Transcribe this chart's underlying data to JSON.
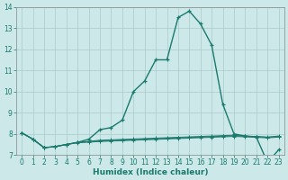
{
  "xlabel": "Humidex (Indice chaleur)",
  "background_color": "#cce8e8",
  "line_color": "#1a7a6e",
  "grid_color": "#aacaca",
  "xlim": [
    -0.5,
    23.5
  ],
  "ylim": [
    7,
    14
  ],
  "yticks": [
    7,
    8,
    9,
    10,
    11,
    12,
    13,
    14
  ],
  "xticks": [
    0,
    1,
    2,
    3,
    4,
    5,
    6,
    7,
    8,
    9,
    10,
    11,
    12,
    13,
    14,
    15,
    16,
    17,
    18,
    19,
    20,
    21,
    22,
    23
  ],
  "main_line_x": [
    0,
    1,
    2,
    3,
    4,
    5,
    6,
    7,
    8,
    9,
    10,
    11,
    12,
    13,
    14,
    15,
    16,
    17,
    18,
    19,
    20,
    21,
    22,
    23
  ],
  "main_line_y": [
    8.05,
    7.75,
    7.35,
    7.4,
    7.5,
    7.6,
    7.75,
    8.2,
    8.3,
    8.65,
    10.0,
    10.5,
    11.5,
    11.5,
    13.5,
    13.8,
    13.2,
    12.2,
    9.4,
    8.0,
    7.9,
    7.85,
    6.65,
    7.25
  ],
  "flat_lines": [
    [
      8.05,
      7.75,
      7.35,
      7.4,
      7.5,
      7.6,
      7.65,
      7.7,
      7.72,
      7.74,
      7.76,
      7.78,
      7.8,
      7.82,
      7.84,
      7.86,
      7.88,
      7.9,
      7.92,
      7.94,
      7.9,
      7.88,
      7.85,
      7.9
    ],
    [
      8.05,
      7.75,
      7.35,
      7.4,
      7.5,
      7.6,
      7.63,
      7.67,
      7.69,
      7.71,
      7.73,
      7.75,
      7.77,
      7.79,
      7.81,
      7.83,
      7.85,
      7.87,
      7.89,
      7.91,
      7.89,
      7.87,
      7.84,
      7.88
    ],
    [
      8.05,
      7.75,
      7.35,
      7.4,
      7.5,
      7.58,
      7.61,
      7.64,
      7.66,
      7.68,
      7.7,
      7.72,
      7.74,
      7.76,
      7.78,
      7.8,
      7.82,
      7.84,
      7.86,
      7.88,
      7.86,
      7.84,
      7.81,
      7.85
    ]
  ]
}
